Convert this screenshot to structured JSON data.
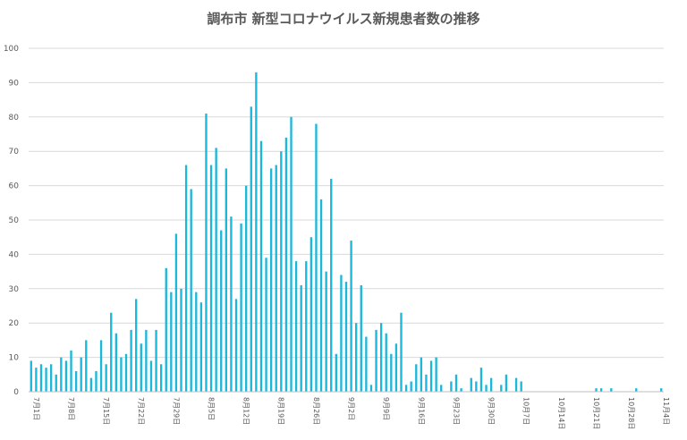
{
  "chart_data": {
    "type": "bar",
    "title": "調布市 新型コロナウイルス新規患者数の推移",
    "xlabel": "",
    "ylabel": "",
    "ylim": [
      0,
      100
    ],
    "yticks": [
      0,
      10,
      20,
      30,
      40,
      50,
      60,
      70,
      80,
      90,
      100
    ],
    "grid": true,
    "bar_color": "#1ab9dc",
    "categories": [
      "7月1日",
      "7月2日",
      "7月3日",
      "7月4日",
      "7月5日",
      "7月6日",
      "7月7日",
      "7月8日",
      "7月9日",
      "7月10日",
      "7月11日",
      "7月12日",
      "7月13日",
      "7月14日",
      "7月15日",
      "7月16日",
      "7月17日",
      "7月18日",
      "7月19日",
      "7月20日",
      "7月21日",
      "7月22日",
      "7月23日",
      "7月24日",
      "7月25日",
      "7月26日",
      "7月27日",
      "7月28日",
      "7月29日",
      "7月30日",
      "7月31日",
      "8月1日",
      "8月2日",
      "8月3日",
      "8月4日",
      "8月5日",
      "8月6日",
      "8月7日",
      "8月8日",
      "8月9日",
      "8月10日",
      "8月11日",
      "8月12日",
      "8月13日",
      "8月14日",
      "8月15日",
      "8月16日",
      "8月17日",
      "8月18日",
      "8月19日",
      "8月20日",
      "8月21日",
      "8月22日",
      "8月23日",
      "8月24日",
      "8月25日",
      "8月26日",
      "8月27日",
      "8月28日",
      "8月29日",
      "8月30日",
      "8月31日",
      "9月1日",
      "9月2日",
      "9月3日",
      "9月4日",
      "9月5日",
      "9月6日",
      "9月7日",
      "9月8日",
      "9月9日",
      "9月10日",
      "9月11日",
      "9月12日",
      "9月13日",
      "9月14日",
      "9月15日",
      "9月16日",
      "9月17日",
      "9月18日",
      "9月19日",
      "9月20日",
      "9月21日",
      "9月22日",
      "9月23日",
      "9月24日",
      "9月25日",
      "9月26日",
      "9月27日",
      "9月28日",
      "9月29日",
      "9月30日",
      "10月1日",
      "10月2日",
      "10月3日",
      "10月4日",
      "10月5日",
      "10月6日",
      "10月7日",
      "10月8日",
      "10月9日",
      "10月10日",
      "10月11日",
      "10月12日",
      "10月13日",
      "10月14日",
      "10月15日",
      "10月16日",
      "10月17日",
      "10月18日",
      "10月19日",
      "10月20日",
      "10月21日",
      "10月22日",
      "10月23日",
      "10月24日",
      "10月25日",
      "10月26日",
      "10月27日",
      "10月28日",
      "10月29日",
      "10月30日",
      "10月31日",
      "11月1日",
      "11月2日",
      "11月3日",
      "11月4日"
    ],
    "tick_labels": [
      "7月1日",
      "7月8日",
      "7月15日",
      "7月22日",
      "7月29日",
      "8月5日",
      "8月12日",
      "8月19日",
      "8月26日",
      "9月2日",
      "9月9日",
      "9月16日",
      "9月23日",
      "9月30日",
      "10月7日",
      "10月14日",
      "10月21日",
      "10月28日",
      "11月4日"
    ],
    "values": [
      9,
      7,
      8,
      7,
      8,
      5,
      10,
      9,
      12,
      6,
      10,
      15,
      4,
      6,
      15,
      8,
      23,
      17,
      10,
      11,
      18,
      27,
      14,
      18,
      9,
      18,
      8,
      36,
      29,
      46,
      30,
      66,
      59,
      29,
      26,
      81,
      66,
      71,
      47,
      65,
      51,
      27,
      49,
      60,
      83,
      93,
      73,
      39,
      65,
      66,
      70,
      74,
      80,
      38,
      31,
      38,
      45,
      78,
      56,
      35,
      62,
      11,
      34,
      32,
      44,
      20,
      31,
      16,
      2,
      18,
      20,
      17,
      11,
      14,
      23,
      2,
      3,
      8,
      10,
      5,
      9,
      10,
      2,
      0,
      3,
      5,
      1,
      0,
      4,
      3,
      7,
      2,
      4,
      0,
      2,
      5,
      0,
      4,
      3,
      0,
      0,
      0,
      0,
      0,
      0,
      0,
      0,
      0,
      0,
      0,
      0,
      0,
      0,
      1,
      1,
      0,
      1,
      0,
      0,
      0,
      0,
      1,
      0,
      0,
      0,
      0,
      1
    ]
  }
}
